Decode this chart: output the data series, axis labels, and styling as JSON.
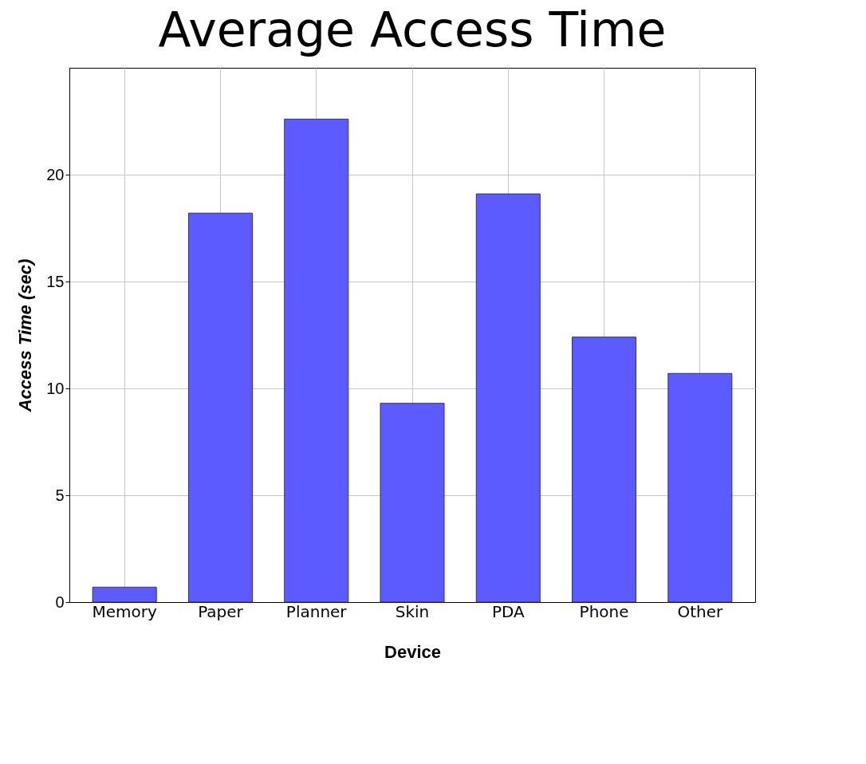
{
  "chart_data": {
    "type": "bar",
    "title": "Average Access Time",
    "xlabel": "Device",
    "ylabel": "Access Time (sec)",
    "categories": [
      "Memory",
      "Paper",
      "Planner",
      "Skin",
      "PDA",
      "Phone",
      "Other"
    ],
    "values": [
      0.7,
      18.2,
      22.6,
      9.3,
      19.1,
      12.4,
      10.7
    ],
    "color": "#5b5bff",
    "ylim": [
      0,
      25
    ],
    "yticks": [
      0,
      5,
      10,
      15,
      20
    ],
    "grid": true
  }
}
